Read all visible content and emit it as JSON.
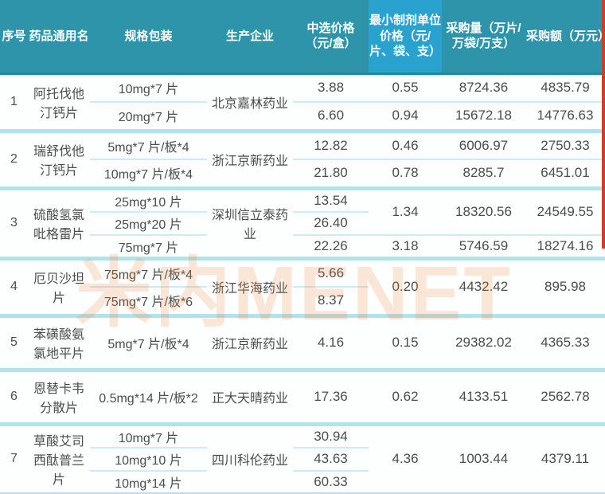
{
  "colors": {
    "header_teal": "#2E94A9",
    "header_highlight_blue": "#29A2D0",
    "subrow_line": "#CDEBF4",
    "group_line": "#B5E0EE",
    "watermark_orange": "#F08A3C",
    "edge_red": "#CC3F2E",
    "body_text": "#4C4C4C"
  },
  "watermark": "米内MENET",
  "table": {
    "headers": [
      "序号",
      "药品通用名",
      "规格包装",
      "生产企业",
      "中选价格（元/盒）",
      "最小制剂单位价格（元/片、袋、支）",
      "采购量（万片/万袋/万支）",
      "采购额（万元）"
    ],
    "groups": [
      {
        "no": "1",
        "name": "阿托伐他汀钙片",
        "producer": "北京嘉林药业",
        "rows": [
          {
            "spec": "10mg*7 片",
            "price": "3.88",
            "unit": "0.55",
            "qty": "8724.36",
            "amount": "4835.79"
          },
          {
            "spec": "20mg*7 片",
            "price": "6.60",
            "unit": "0.94",
            "qty": "15672.18",
            "amount": "14776.63"
          }
        ]
      },
      {
        "no": "2",
        "name": "瑞舒伐他汀钙片",
        "producer": "浙江京新药业",
        "rows": [
          {
            "spec": "5mg*7 片/板*4",
            "price": "12.82",
            "unit": "0.46",
            "qty": "6006.97",
            "amount": "2750.33"
          },
          {
            "spec": "10mg*7 片/板*4",
            "price": "21.80",
            "unit": "0.78",
            "qty": "8285.7",
            "amount": "6451.01"
          }
        ]
      },
      {
        "no": "3",
        "name": "硫酸氢氯吡格雷片",
        "producer": "深圳信立泰药业",
        "rows": [
          {
            "spec": "25mg*10 片",
            "price": "13.54",
            "unit": {
              "v": "1.34",
              "span": 2
            },
            "qty": {
              "v": "18320.56",
              "span": 2
            },
            "amount": {
              "v": "24549.55",
              "span": 2
            }
          },
          {
            "spec": "25mg*20 片",
            "price": "26.40"
          },
          {
            "spec": "75mg*7 片",
            "price": "22.26",
            "unit": "3.18",
            "qty": "5746.59",
            "amount": "18274.16"
          }
        ]
      },
      {
        "no": "4",
        "name": "厄贝沙坦片",
        "producer": "浙江华海药业",
        "rows": [
          {
            "spec": "75mg*7 片/板*4",
            "price": "5.66",
            "unit": {
              "v": "0.20",
              "span": 2
            },
            "qty": {
              "v": "4432.42",
              "span": 2
            },
            "amount": {
              "v": "895.98",
              "span": 2
            }
          },
          {
            "spec": "75mg*7 片/板*6",
            "price": "8.37"
          }
        ]
      },
      {
        "no": "5",
        "name": "苯磺酸氨氯地平片",
        "producer": "浙江京新药业",
        "rows": [
          {
            "spec": "5mg*7 片/板*4",
            "price": "4.16",
            "unit": "0.15",
            "qty": "29382.02",
            "amount": "4365.33"
          }
        ]
      },
      {
        "no": "6",
        "name": "恩替卡韦分散片",
        "producer": "正大天晴药业",
        "rows": [
          {
            "spec": "0.5mg*14 片/板*2",
            "price": "17.36",
            "unit": "0.62",
            "qty": "4133.51",
            "amount": "2562.78"
          }
        ]
      },
      {
        "no": "7",
        "name": "草酸艾司西酞普兰片",
        "producer": "四川科伦药业",
        "rows": [
          {
            "spec": "10mg*7 片",
            "price": "30.94",
            "unit": {
              "v": "4.36",
              "span": 3
            },
            "qty": {
              "v": "1003.44",
              "span": 3
            },
            "amount": {
              "v": "4379.11",
              "span": 3
            }
          },
          {
            "spec": "10mg*10 片",
            "price": "43.63"
          },
          {
            "spec": "10mg*14 片",
            "price": "60.33"
          }
        ]
      }
    ]
  }
}
